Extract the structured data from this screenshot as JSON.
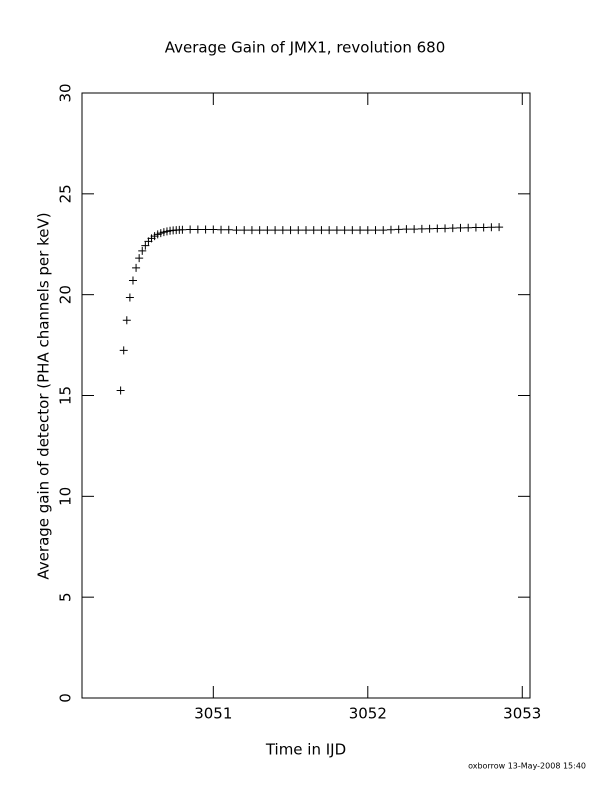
{
  "chart_data": {
    "type": "scatter",
    "marker": "+",
    "color": "#000000",
    "title": "Average Gain of JMX1, revolution 680",
    "x_label": "Time in IJD",
    "y_label": "Average gain of detector (PHA channels per keV)",
    "footer": "oxborrow 13-May-2008 15:40",
    "xlim": [
      3050.15,
      3053.05
    ],
    "ylim": [
      0,
      30
    ],
    "xticks": [
      3051,
      3052,
      3053
    ],
    "yticks": [
      0,
      5,
      10,
      15,
      20,
      25,
      30
    ],
    "series": [
      {
        "name": "JMX1",
        "x": [
          3050.4,
          3050.42,
          3050.44,
          3050.46,
          3050.48,
          3050.5,
          3050.52,
          3050.54,
          3050.56,
          3050.58,
          3050.6,
          3050.62,
          3050.64,
          3050.66,
          3050.68,
          3050.7,
          3050.72,
          3050.74,
          3050.76,
          3050.78,
          3050.8,
          3050.85,
          3050.9,
          3050.95,
          3051.0,
          3051.05,
          3051.1,
          3051.15,
          3051.2,
          3051.25,
          3051.3,
          3051.35,
          3051.4,
          3051.45,
          3051.5,
          3051.55,
          3051.6,
          3051.65,
          3051.7,
          3051.75,
          3051.8,
          3051.85,
          3051.9,
          3051.95,
          3052.0,
          3052.05,
          3052.1,
          3052.15,
          3052.2,
          3052.25,
          3052.3,
          3052.35,
          3052.4,
          3052.45,
          3052.5,
          3052.55,
          3052.6,
          3052.65,
          3052.7,
          3052.75,
          3052.8,
          3052.85
        ],
        "values": [
          15.25,
          17.24,
          18.73,
          19.86,
          20.7,
          21.33,
          21.81,
          22.17,
          22.43,
          22.64,
          22.79,
          22.9,
          22.99,
          23.05,
          23.1,
          23.14,
          23.17,
          23.19,
          23.2,
          23.21,
          23.22,
          23.23,
          23.23,
          23.23,
          23.23,
          23.22,
          23.22,
          23.2,
          23.2,
          23.2,
          23.2,
          23.2,
          23.2,
          23.2,
          23.2,
          23.2,
          23.2,
          23.2,
          23.2,
          23.2,
          23.2,
          23.2,
          23.2,
          23.2,
          23.2,
          23.2,
          23.2,
          23.22,
          23.24,
          23.25,
          23.25,
          23.26,
          23.27,
          23.28,
          23.29,
          23.3,
          23.31,
          23.32,
          23.33,
          23.33,
          23.34,
          23.35
        ]
      }
    ]
  }
}
